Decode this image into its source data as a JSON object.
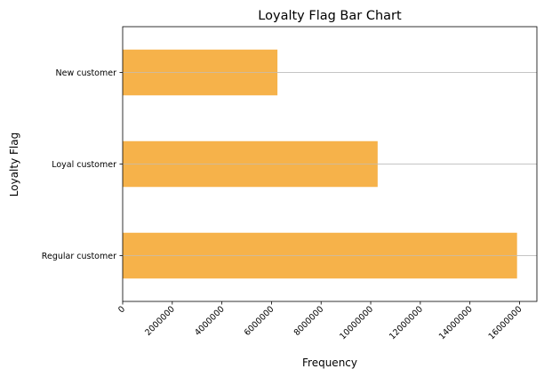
{
  "chart_data": {
    "type": "bar",
    "orientation": "horizontal",
    "title": "Loyalty Flag Bar Chart",
    "xlabel": "Frequency",
    "ylabel": "Loyalty Flag",
    "categories": [
      "Regular customer",
      "Loyal customer",
      "New customer"
    ],
    "values": [
      15900000,
      10280000,
      6240000
    ],
    "xlim": [
      0,
      16700000
    ],
    "xticks": [
      0,
      2000000,
      4000000,
      6000000,
      8000000,
      10000000,
      12000000,
      14000000,
      16000000
    ],
    "xtick_labels": [
      "0",
      "2000000",
      "4000000",
      "6000000",
      "8000000",
      "10000000",
      "12000000",
      "14000000",
      "16000000"
    ],
    "grid": "horizontal",
    "bar_color": "#f5ae40",
    "grid_color": "#c0c0c0"
  }
}
